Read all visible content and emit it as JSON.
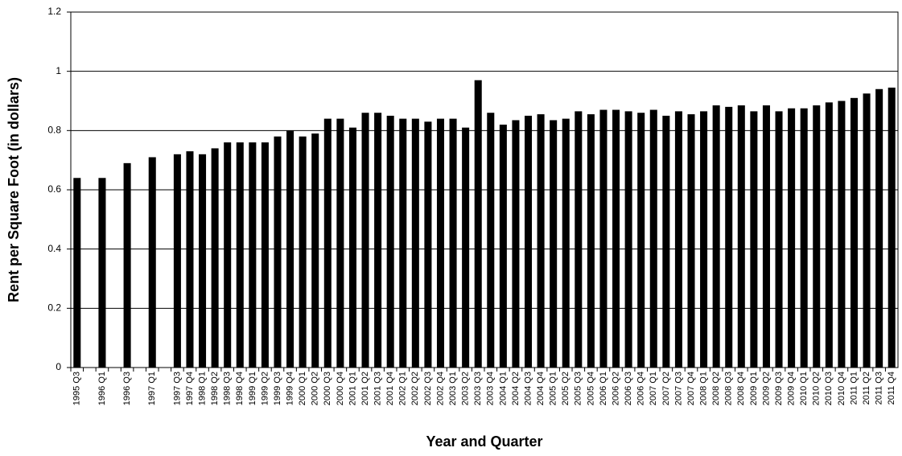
{
  "chart_data": {
    "type": "bar",
    "x_label": "Year and Quarter",
    "y_label": "Rent per Square Foot (in dollars)",
    "categories": [
      "1995 Q3",
      null,
      "1996 Q1",
      null,
      "1996 Q3",
      null,
      "1997 Q1",
      null,
      "1997 Q3",
      "1997 Q4",
      "1998 Q1",
      "1998 Q2",
      "1998 Q3",
      "1998 Q4",
      "1999 Q1",
      "1999 Q2",
      "1999 Q3",
      "1999 Q4",
      "2000 Q1",
      "2000 Q2",
      "2000 Q3",
      "2000 Q4",
      "2001 Q1",
      "2001 Q2",
      "2001 Q3",
      "2001 Q4",
      "2002 Q1",
      "2002 Q2",
      "2002 Q3",
      "2002 Q4",
      "2003 Q1",
      "2003 Q2",
      "2003 Q3",
      "2003 Q4",
      "2004 Q1",
      "2004 Q2",
      "2004 Q3",
      "2004 Q4",
      "2005 Q1",
      "2005 Q2",
      "2005 Q3",
      "2005 Q4",
      "2006 Q1",
      "2006 Q2",
      "2006 Q3",
      "2006 Q4",
      "2007 Q1",
      "2007 Q2",
      "2007 Q3",
      "2007 Q4",
      "2008 Q1",
      "2008 Q2",
      "2008 Q3",
      "2008 Q4",
      "2009 Q1",
      "2009 Q2",
      "2009 Q3",
      "2009 Q4",
      "2010 Q1",
      "2010 Q2",
      "2010 Q3",
      "2010 Q4",
      "2011 Q1",
      "2011 Q2",
      "2011 Q3",
      "2011 Q4"
    ],
    "values": [
      0.64,
      null,
      0.64,
      null,
      0.69,
      null,
      0.71,
      null,
      0.72,
      0.73,
      0.72,
      0.74,
      0.76,
      0.76,
      0.76,
      0.76,
      0.78,
      0.8,
      0.78,
      0.79,
      0.84,
      0.84,
      0.81,
      0.86,
      0.86,
      0.85,
      0.84,
      0.84,
      0.83,
      0.84,
      0.84,
      0.81,
      0.97,
      0.86,
      0.82,
      0.835,
      0.85,
      0.855,
      0.835,
      0.84,
      0.865,
      0.855,
      0.87,
      0.87,
      0.865,
      0.86,
      0.87,
      0.85,
      0.865,
      0.855,
      0.865,
      0.885,
      0.88,
      0.885,
      0.865,
      0.885,
      0.865,
      0.875,
      0.875,
      0.885,
      0.895,
      0.9,
      0.91,
      0.925,
      0.94,
      0.945
    ],
    "color": "#000000",
    "ylim": [
      0,
      1.2
    ],
    "yticks": [
      0,
      0.2,
      0.4,
      0.6,
      0.8,
      1,
      1.2
    ],
    "grid": true
  }
}
